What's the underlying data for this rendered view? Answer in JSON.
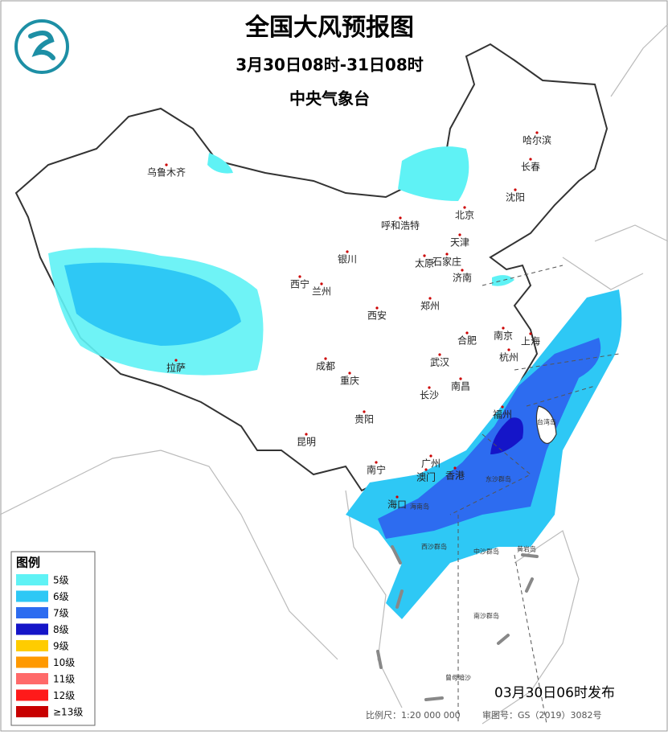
{
  "header": {
    "title": "全国大风预报图",
    "subtitle": "3月30日08时-31日08时",
    "agency": "中央气象台"
  },
  "legend": {
    "title": "图例",
    "items": [
      {
        "label": "5级",
        "color": "#5ff2f5"
      },
      {
        "label": "6级",
        "color": "#2ec8f5"
      },
      {
        "label": "7级",
        "color": "#2d6cf0"
      },
      {
        "label": "8级",
        "color": "#1515c8"
      },
      {
        "label": "9级",
        "color": "#ffcc00"
      },
      {
        "label": "10级",
        "color": "#ff9900"
      },
      {
        "label": "11级",
        "color": "#ff6a6a"
      },
      {
        "label": "12级",
        "color": "#ff1a1a"
      },
      {
        "label": "≥13级",
        "color": "#c80000"
      }
    ]
  },
  "cities": [
    "乌鲁木齐",
    "哈尔滨",
    "长春",
    "沈阳",
    "北京",
    "呼和浩特",
    "天津",
    "银川",
    "太原",
    "石家庄",
    "济南",
    "西宁",
    "兰州",
    "郑州",
    "西安",
    "南京",
    "合肥",
    "上海",
    "杭州",
    "成都",
    "武汉",
    "重庆",
    "拉萨",
    "南昌",
    "长沙",
    "贵阳",
    "福州",
    "昆明",
    "南宁",
    "广州",
    "香港",
    "澳门",
    "海口"
  ],
  "islands": [
    "台湾岛",
    "海南岛",
    "东沙群岛",
    "西沙群岛",
    "中沙群岛",
    "黄岩岛",
    "南沙群岛",
    "曾母暗沙"
  ],
  "footer": {
    "issued": "03月30日06时发布",
    "scale": "比例尺：1:20 000 000",
    "review": "审图号：GS（2019）3082号"
  }
}
